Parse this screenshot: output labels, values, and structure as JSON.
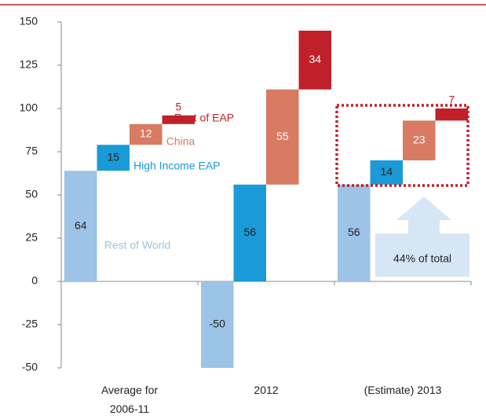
{
  "chart_data": {
    "type": "bar",
    "stacked": true,
    "categories": [
      "Average for\n2006-11",
      "2012",
      "(Estimate) 2013"
    ],
    "series": [
      {
        "name": "Rest of World",
        "color": "#9dc3e6",
        "values": [
          64,
          -50,
          56
        ]
      },
      {
        "name": "High Income EAP",
        "color": "#1a9ad6",
        "values": [
          15,
          56,
          14
        ]
      },
      {
        "name": "China",
        "color": "#d97b62",
        "values": [
          12,
          55,
          23
        ]
      },
      {
        "name": "Rest of EAP",
        "color": "#c0202a",
        "values": [
          5,
          34,
          7
        ]
      }
    ],
    "ylim": [
      -50,
      150
    ],
    "yticks": [
      -50,
      -25,
      0,
      25,
      50,
      75,
      100,
      125,
      150
    ],
    "annotation": "44% of total"
  }
}
